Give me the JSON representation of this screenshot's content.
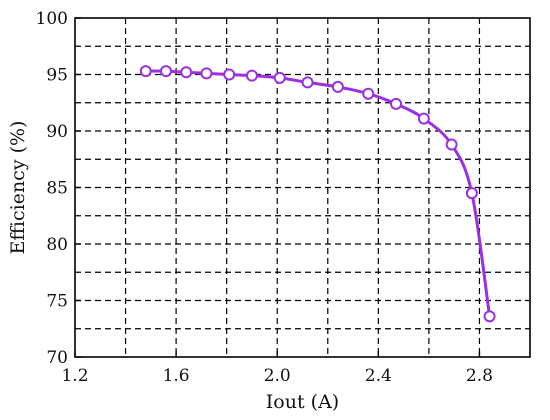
{
  "chart_data": {
    "type": "line",
    "title": "",
    "xlabel": "Iout (A)",
    "ylabel": "Efficiency (%)",
    "xlim": [
      1.2,
      3.0
    ],
    "ylim": [
      70,
      100
    ],
    "xticks": [
      1.2,
      1.6,
      2.0,
      2.4,
      2.8
    ],
    "xtick_labels": [
      "1.2",
      "1.6",
      "2.0",
      "2.4",
      "2.8"
    ],
    "yticks": [
      70,
      75,
      80,
      85,
      90,
      95,
      100
    ],
    "ytick_labels": [
      "70",
      "75",
      "80",
      "85",
      "90",
      "95",
      "100"
    ],
    "grid": true,
    "grid_style": "dashed",
    "series": [
      {
        "color": "#9b30e0",
        "marker": "open-circle",
        "x": [
          1.48,
          1.56,
          1.64,
          1.72,
          1.81,
          1.9,
          2.01,
          2.12,
          2.24,
          2.36,
          2.47,
          2.58,
          2.69,
          2.77,
          2.84
        ],
        "y": [
          95.3,
          95.3,
          95.2,
          95.1,
          95.0,
          94.9,
          94.7,
          94.3,
          93.9,
          93.3,
          92.4,
          91.1,
          88.8,
          84.5,
          73.6
        ]
      }
    ]
  }
}
